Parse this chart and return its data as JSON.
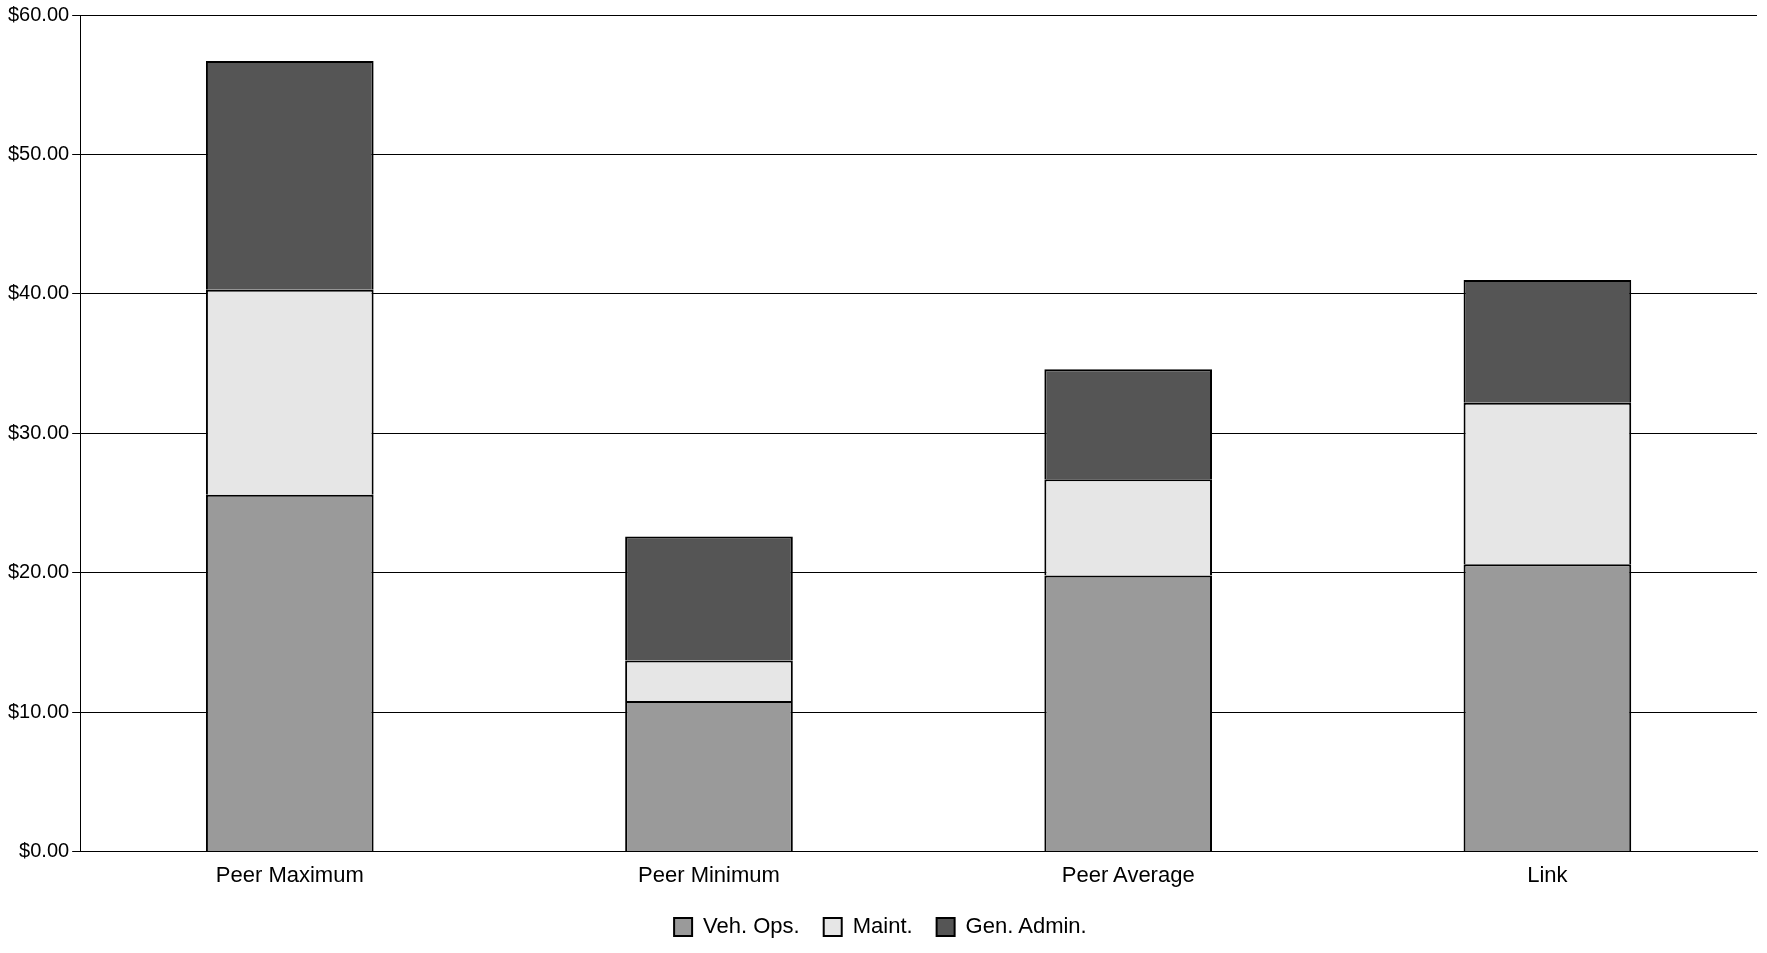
{
  "chart_data": {
    "type": "bar",
    "stacked": true,
    "categories": [
      "Peer Maximum",
      "Peer Minimum",
      "Peer Average",
      "Link"
    ],
    "series": [
      {
        "name": "Veh. Ops.",
        "color": "#9a9a9a",
        "values": [
          25.6,
          10.8,
          19.8,
          20.6
        ]
      },
      {
        "name": "Maint.",
        "color": "#e6e6e6",
        "values": [
          14.7,
          2.9,
          6.9,
          11.6
        ]
      },
      {
        "name": "Gen. Admin.",
        "color": "#555555",
        "values": [
          16.4,
          8.9,
          7.9,
          8.8
        ]
      }
    ],
    "ylim": [
      0,
      60
    ],
    "yticks": [
      {
        "value": 0,
        "label": "$0.00"
      },
      {
        "value": 10,
        "label": "$10.00"
      },
      {
        "value": 20,
        "label": "$20.00"
      },
      {
        "value": 30,
        "label": "$30.00"
      },
      {
        "value": 40,
        "label": "$40.00"
      },
      {
        "value": 50,
        "label": "$50.00"
      },
      {
        "value": 60,
        "label": "$60.00"
      }
    ],
    "grid": "y",
    "legend": "bottom"
  }
}
